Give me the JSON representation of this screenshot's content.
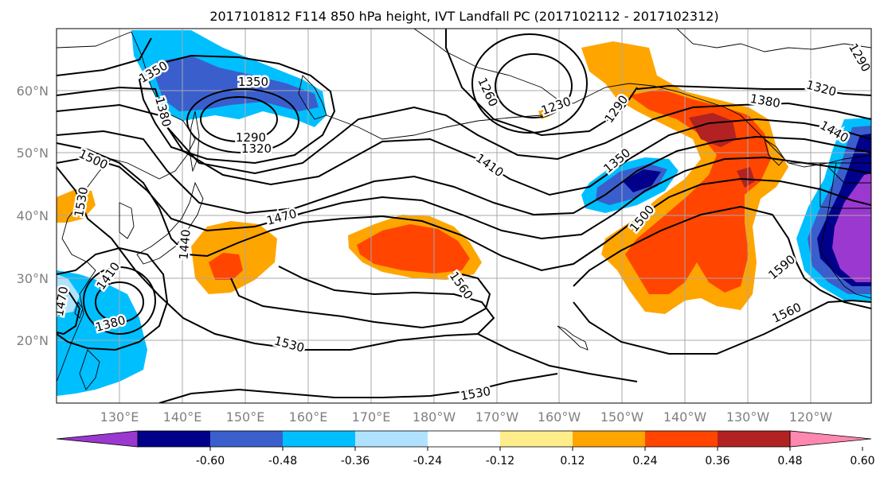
{
  "title": "2017101812 F114 850 hPa height, IVT Landfall PC (2017102112 - 2017102312)",
  "map": {
    "lat_labels": [
      "60°N",
      "50°N",
      "40°N",
      "30°N",
      "20°N"
    ],
    "lon_labels": [
      "130°E",
      "140°E",
      "150°E",
      "160°E",
      "170°E",
      "180°W",
      "170°W",
      "160°W",
      "150°W",
      "140°W",
      "130°W",
      "120°W"
    ],
    "contour_labels": [
      "1350",
      "1350",
      "1380",
      "1290",
      "1320",
      "1260",
      "1230",
      "1290",
      "1320",
      "1380",
      "1440",
      "1290",
      "1500",
      "1530",
      "1410",
      "1470",
      "1440",
      "1350",
      "1500",
      "1590",
      "1560",
      "1560",
      "1530",
      "1530",
      "1380",
      "1470",
      "1410"
    ],
    "colors": {
      "label_text": "#808080",
      "grid": "#a8a8a8",
      "coast": "#000000"
    }
  },
  "colorbar": {
    "tick_labels": [
      "-0.60",
      "-0.48",
      "-0.36",
      "-0.24",
      "-0.12",
      "0.12",
      "0.24",
      "0.36",
      "0.48",
      "0.60"
    ],
    "colors": [
      "#9a38d0",
      "#00008a",
      "#3a5fcd",
      "#00bfff",
      "#b0e2ff",
      "#ffffff",
      "#ffec8b",
      "#ffa500",
      "#ff4500",
      "#b22222",
      "#ff88b0"
    ]
  }
}
